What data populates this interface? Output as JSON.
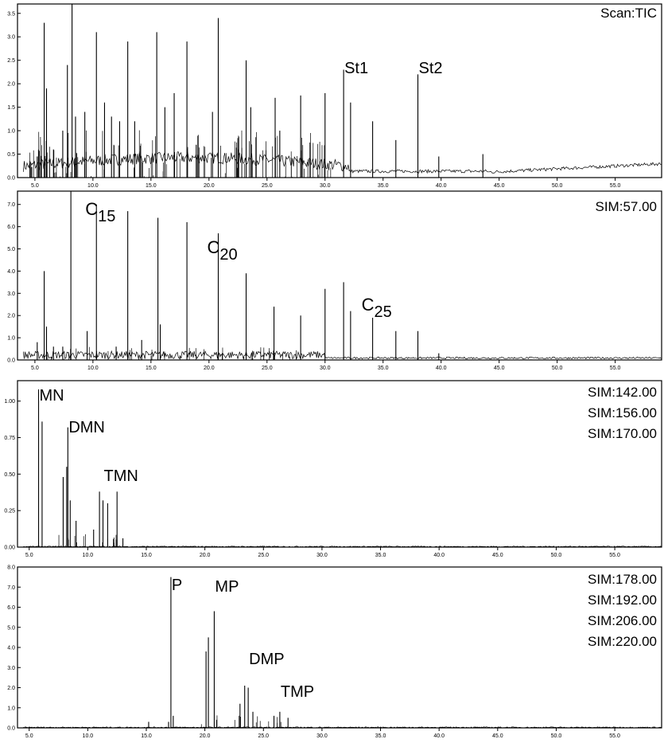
{
  "chart_data": [
    {
      "type": "line",
      "mode": "TIC",
      "title": "",
      "xlabel": "",
      "ylabel": "",
      "legend": [
        "Scan:TIC"
      ],
      "xlim": [
        3.5,
        59.0
      ],
      "ylim": [
        0,
        3.7
      ],
      "xticks": [
        "5.0",
        "10.0",
        "15.0",
        "20.0",
        "25.0",
        "30.0",
        "35.0",
        "40.0",
        "45.0",
        "50.0",
        "55.0"
      ],
      "yticks": [
        "0.0",
        "0.5",
        "1.0",
        "1.5",
        "2.0",
        "2.5",
        "3.0",
        "3.5"
      ],
      "peaks": [
        {
          "x": 5.2,
          "y": 0.45
        },
        {
          "x": 5.8,
          "y": 3.3
        },
        {
          "x": 6.0,
          "y": 1.9
        },
        {
          "x": 6.6,
          "y": 0.6
        },
        {
          "x": 7.4,
          "y": 1.0
        },
        {
          "x": 7.8,
          "y": 2.4
        },
        {
          "x": 8.2,
          "y": 3.8
        },
        {
          "x": 8.5,
          "y": 1.3
        },
        {
          "x": 9.3,
          "y": 1.4
        },
        {
          "x": 10.3,
          "y": 3.1
        },
        {
          "x": 11.0,
          "y": 1.6
        },
        {
          "x": 11.6,
          "y": 1.3
        },
        {
          "x": 12.3,
          "y": 1.2
        },
        {
          "x": 13.0,
          "y": 2.9
        },
        {
          "x": 13.6,
          "y": 1.2
        },
        {
          "x": 15.5,
          "y": 3.1
        },
        {
          "x": 16.2,
          "y": 1.5
        },
        {
          "x": 17.0,
          "y": 1.8
        },
        {
          "x": 18.1,
          "y": 2.9
        },
        {
          "x": 18.9,
          "y": 0.7
        },
        {
          "x": 20.3,
          "y": 1.4
        },
        {
          "x": 20.8,
          "y": 3.4
        },
        {
          "x": 23.2,
          "y": 2.5
        },
        {
          "x": 23.6,
          "y": 1.5
        },
        {
          "x": 25.7,
          "y": 1.7
        },
        {
          "x": 26.1,
          "y": 1.0
        },
        {
          "x": 27.9,
          "y": 1.75
        },
        {
          "x": 30.0,
          "y": 1.8
        },
        {
          "x": 31.6,
          "y": 2.3
        },
        {
          "x": 32.2,
          "y": 1.6
        },
        {
          "x": 34.1,
          "y": 1.2
        },
        {
          "x": 36.1,
          "y": 0.8
        },
        {
          "x": 38.0,
          "y": 2.2
        },
        {
          "x": 39.8,
          "y": 0.45
        },
        {
          "x": 43.6,
          "y": 0.5
        }
      ],
      "annotations": [
        {
          "text": "St1",
          "x": 31.6
        },
        {
          "text": "St2",
          "x": 38.0
        }
      ]
    },
    {
      "type": "line",
      "mode": "SIM",
      "title": "",
      "xlabel": "",
      "ylabel": "",
      "legend": [
        "SIM:57.00"
      ],
      "xlim": [
        3.5,
        59.0
      ],
      "ylim": [
        0,
        7.6
      ],
      "xticks": [
        "5.0",
        "10.0",
        "15.0",
        "20.0",
        "25.0",
        "30.0",
        "35.0",
        "40.0",
        "45.0",
        "50.0",
        "55.0"
      ],
      "yticks": [
        "0.0",
        "1.0",
        "2.0",
        "3.0",
        "4.0",
        "5.0",
        "6.0",
        "7.0"
      ],
      "peaks": [
        {
          "x": 5.2,
          "y": 0.8
        },
        {
          "x": 5.8,
          "y": 4.0
        },
        {
          "x": 6.0,
          "y": 1.5
        },
        {
          "x": 6.6,
          "y": 0.6
        },
        {
          "x": 7.4,
          "y": 0.6
        },
        {
          "x": 8.1,
          "y": 7.6
        },
        {
          "x": 9.5,
          "y": 1.3
        },
        {
          "x": 10.3,
          "y": 7.0
        },
        {
          "x": 12.0,
          "y": 0.6
        },
        {
          "x": 13.0,
          "y": 6.7
        },
        {
          "x": 14.2,
          "y": 0.9
        },
        {
          "x": 15.6,
          "y": 6.4
        },
        {
          "x": 15.8,
          "y": 1.6
        },
        {
          "x": 18.1,
          "y": 6.2
        },
        {
          "x": 20.8,
          "y": 5.7
        },
        {
          "x": 23.2,
          "y": 3.9
        },
        {
          "x": 25.6,
          "y": 2.4
        },
        {
          "x": 27.9,
          "y": 2.0
        },
        {
          "x": 30.0,
          "y": 3.2
        },
        {
          "x": 31.6,
          "y": 3.5
        },
        {
          "x": 32.2,
          "y": 2.2
        },
        {
          "x": 34.1,
          "y": 1.9
        },
        {
          "x": 36.1,
          "y": 1.3
        },
        {
          "x": 38.0,
          "y": 1.3
        },
        {
          "x": 39.8,
          "y": 0.3
        }
      ],
      "annotations": [
        {
          "text": "C",
          "sub": "15",
          "x": 10.3
        },
        {
          "text": "C",
          "sub": "20",
          "x": 20.8
        },
        {
          "text": "C",
          "sub": "25",
          "x": 34.1
        }
      ]
    },
    {
      "type": "line",
      "mode": "SIM",
      "title": "",
      "xlabel": "",
      "ylabel": "",
      "legend": [
        "SIM:142.00",
        "SIM:156.00",
        "SIM:170.00"
      ],
      "xlim": [
        4.0,
        59.0
      ],
      "ylim": [
        0,
        1.14
      ],
      "xticks": [
        "5.0",
        "10.0",
        "15.0",
        "20.0",
        "25.0",
        "30.0",
        "35.0",
        "40.0",
        "45.0",
        "50.0",
        "55.0"
      ],
      "yticks": [
        "0.00",
        "0.25",
        "0.50",
        "0.75",
        "1.00"
      ],
      "peaks": [
        {
          "x": 5.8,
          "y": 1.08
        },
        {
          "x": 6.1,
          "y": 0.86
        },
        {
          "x": 7.9,
          "y": 0.48
        },
        {
          "x": 8.2,
          "y": 0.55
        },
        {
          "x": 8.3,
          "y": 0.82
        },
        {
          "x": 8.5,
          "y": 0.32
        },
        {
          "x": 9.0,
          "y": 0.18
        },
        {
          "x": 10.5,
          "y": 0.12
        },
        {
          "x": 11.0,
          "y": 0.38
        },
        {
          "x": 11.3,
          "y": 0.32
        },
        {
          "x": 11.7,
          "y": 0.3
        },
        {
          "x": 12.5,
          "y": 0.38
        },
        {
          "x": 13.0,
          "y": 0.06
        }
      ],
      "annotations": [
        {
          "text": "MN",
          "x": 5.8
        },
        {
          "text": "DMN",
          "x": 8.3
        },
        {
          "text": "TMN",
          "x": 11.3
        }
      ]
    },
    {
      "type": "line",
      "mode": "SIM",
      "title": "",
      "xlabel": "",
      "ylabel": "",
      "legend": [
        "SIM:178.00",
        "SIM:192.00",
        "SIM:206.00",
        "SIM:220.00"
      ],
      "xlim": [
        4.0,
        59.0
      ],
      "ylim": [
        0,
        8.0
      ],
      "xticks": [
        "5.0",
        "10.0",
        "15.0",
        "20.0",
        "25.0",
        "30.0",
        "35.0",
        "40.0",
        "45.0",
        "50.0",
        "55.0"
      ],
      "yticks": [
        "0.0",
        "1.0",
        "2.0",
        "3.0",
        "4.0",
        "5.0",
        "6.0",
        "7.0",
        "8.0"
      ],
      "peaks": [
        {
          "x": 15.2,
          "y": 0.3
        },
        {
          "x": 16.9,
          "y": 0.3
        },
        {
          "x": 17.1,
          "y": 7.5
        },
        {
          "x": 17.3,
          "y": 0.6
        },
        {
          "x": 20.1,
          "y": 3.8
        },
        {
          "x": 20.3,
          "y": 4.5
        },
        {
          "x": 20.8,
          "y": 5.8
        },
        {
          "x": 23.0,
          "y": 1.2
        },
        {
          "x": 23.4,
          "y": 2.1
        },
        {
          "x": 23.7,
          "y": 2.0
        },
        {
          "x": 24.1,
          "y": 0.8
        },
        {
          "x": 25.9,
          "y": 0.6
        },
        {
          "x": 26.4,
          "y": 0.8
        },
        {
          "x": 27.1,
          "y": 0.5
        }
      ],
      "annotations": [
        {
          "text": "P",
          "x": 17.1
        },
        {
          "text": "MP",
          "x": 20.8
        },
        {
          "text": "DMP",
          "x": 23.7
        },
        {
          "text": "TMP",
          "x": 26.4
        }
      ]
    }
  ]
}
